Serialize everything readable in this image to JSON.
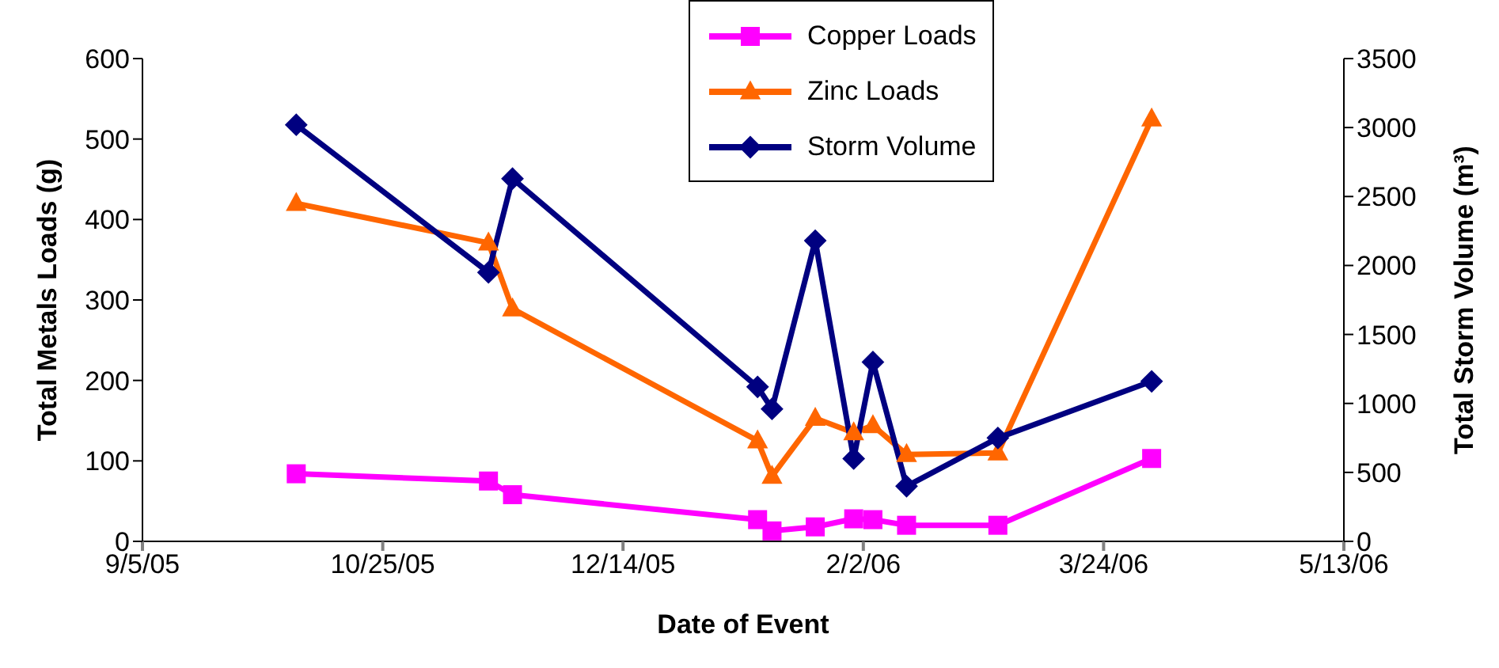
{
  "chart_data": {
    "type": "line",
    "xlabel": "Date of Event",
    "ylabel": "Total Metals Loads (g)",
    "y2label": "Total Storm Volume (m³)",
    "x": [
      "2005-10-07",
      "2005-11-16",
      "2005-11-21",
      "2006-01-11",
      "2006-01-14",
      "2006-01-23",
      "2006-01-31",
      "2006-02-04",
      "2006-02-11",
      "2006-03-02",
      "2006-04-03"
    ],
    "series": [
      {
        "name": "Copper Loads",
        "color": "#ff00ff",
        "marker": "square",
        "values": [
          84,
          75,
          58,
          27,
          13,
          18,
          28,
          27,
          20,
          20,
          103
        ]
      },
      {
        "name": "Zinc Loads",
        "color": "#ff6600",
        "marker": "triangle",
        "values": [
          420,
          371,
          289,
          125,
          81,
          153,
          135,
          144,
          108,
          110,
          525
        ]
      },
      {
        "name": "Storm Volume",
        "color": "#000080",
        "marker": "diamond",
        "axis": "y2",
        "values": [
          3020,
          1950,
          2630,
          1120,
          960,
          2180,
          600,
          1300,
          400,
          750,
          1160
        ]
      }
    ],
    "xlim": [
      "2005-09-05",
      "2006-05-13"
    ],
    "xticks": [
      {
        "value": "2005-09-05",
        "label": "9/5/05"
      },
      {
        "value": "2005-10-25",
        "label": "10/25/05"
      },
      {
        "value": "2005-12-14",
        "label": "12/14/05"
      },
      {
        "value": "2006-02-02",
        "label": "2/2/06"
      },
      {
        "value": "2006-03-24",
        "label": "3/24/06"
      },
      {
        "value": "2006-05-13",
        "label": "5/13/06"
      }
    ],
    "ylim": [
      0,
      600
    ],
    "yticks": [
      0,
      100,
      200,
      300,
      400,
      500,
      600
    ],
    "y2lim": [
      0,
      3500
    ],
    "y2ticks": [
      0,
      500,
      1000,
      1500,
      2000,
      2500,
      3000,
      3500
    ],
    "grid": false,
    "legend": "top",
    "line_style": "solid"
  }
}
